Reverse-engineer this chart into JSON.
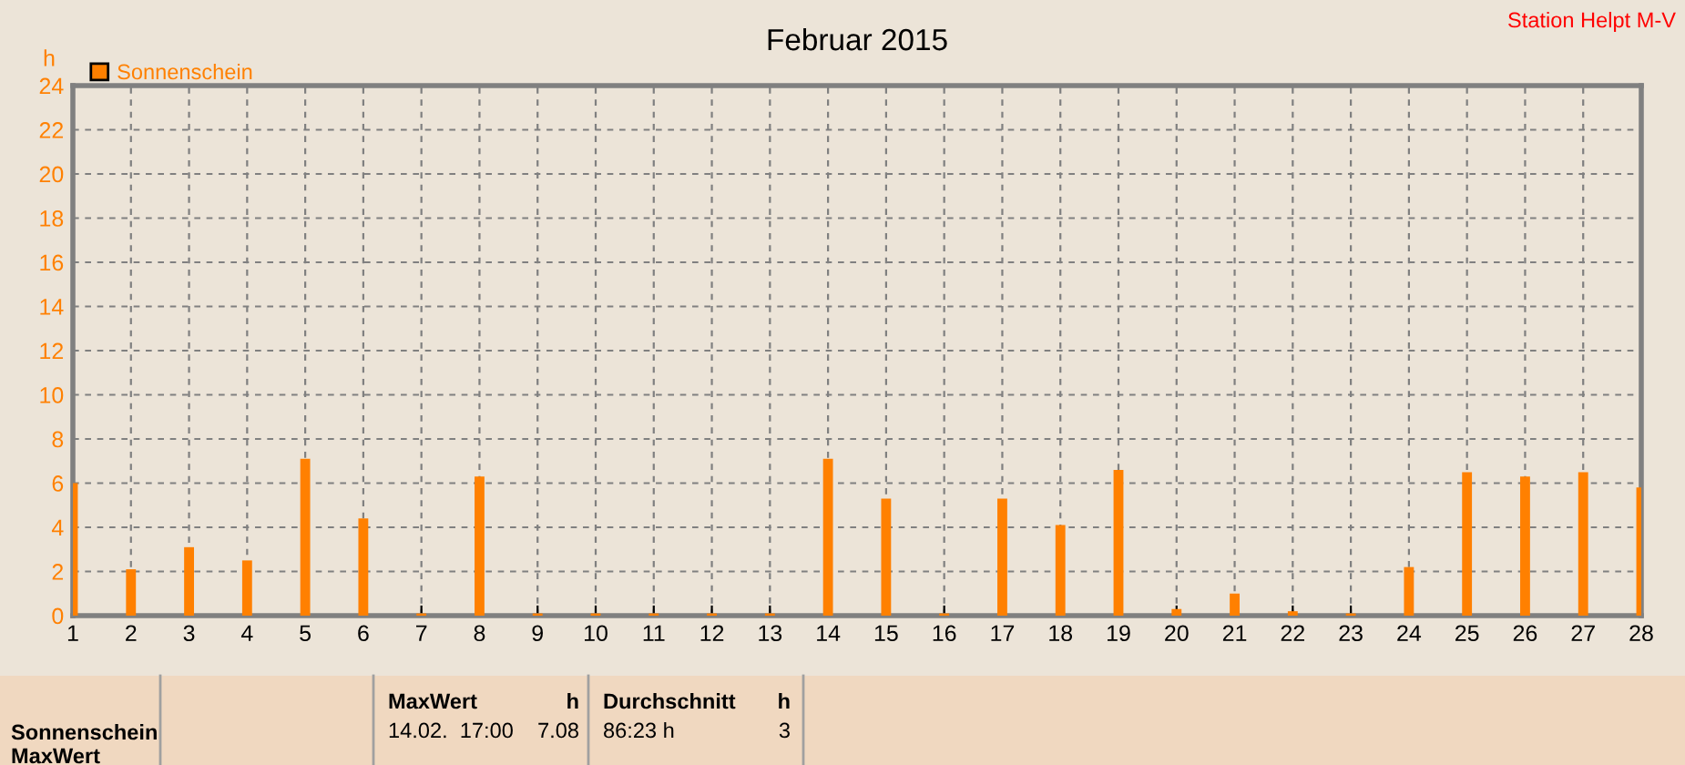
{
  "chart_data": {
    "type": "bar",
    "title": "Februar 2015",
    "ylabel": "h",
    "x": [
      1,
      2,
      3,
      4,
      5,
      6,
      7,
      8,
      9,
      10,
      11,
      12,
      13,
      14,
      15,
      16,
      17,
      18,
      19,
      20,
      21,
      22,
      23,
      24,
      25,
      26,
      27,
      28
    ],
    "series": [
      {
        "name": "Sonnenschein",
        "color": "#ff8000",
        "values": [
          6.0,
          2.1,
          3.1,
          2.5,
          7.1,
          4.4,
          0.1,
          6.3,
          0.1,
          0.1,
          0.1,
          0.1,
          0.1,
          7.1,
          5.3,
          0.1,
          5.3,
          4.1,
          6.6,
          0.3,
          1.0,
          0.2,
          0.1,
          2.2,
          6.5,
          6.3,
          6.5,
          5.8
        ]
      }
    ],
    "xlim": [
      1,
      28
    ],
    "xticks": [
      1,
      2,
      3,
      4,
      5,
      6,
      7,
      8,
      9,
      10,
      11,
      12,
      13,
      14,
      15,
      16,
      17,
      18,
      19,
      20,
      21,
      22,
      23,
      24,
      25,
      26,
      27,
      28
    ],
    "ylim": [
      0,
      24
    ],
    "yticks": [
      0,
      2,
      4,
      6,
      8,
      10,
      12,
      14,
      16,
      18,
      20,
      22,
      24
    ],
    "grid": true,
    "legend": "top left",
    "annotations": [
      "Station Helpt M-V",
      "Sonnenschein",
      "MaxWert",
      "MaxWert",
      "h",
      "14.02.  17:00",
      "7.08",
      "Durchschnitt",
      "h",
      "86:23 h",
      "3"
    ]
  }
}
